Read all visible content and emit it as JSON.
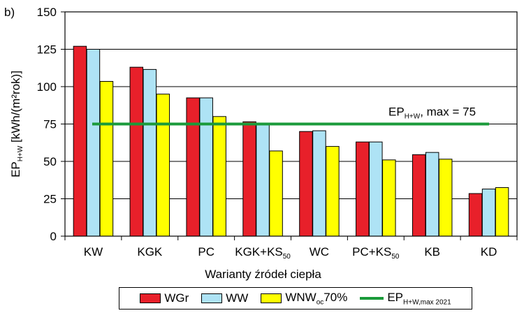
{
  "panel_label": "b)",
  "colors": {
    "WGr": "#e8202a",
    "WW": "#aee3f5",
    "WNW": "#ffff00",
    "reference": "#1a9a3a"
  },
  "reference_label": {
    "main": "EP",
    "sub": "H+W",
    "rest": ", max = 75"
  },
  "legend": {
    "wgr": "WGr",
    "ww": "WW",
    "wnw_main": "WNW",
    "wnw_sub": "oc",
    "wnw_rest": "70%",
    "ep_main": "EP",
    "ep_sub": "H+W,max 2021"
  },
  "chart_data": {
    "type": "bar",
    "xlabel": "Warianty źródeł ciepła",
    "ylabel": {
      "main": "EP",
      "sub": "H+W",
      "rest": " [kWh/(m²rok)]"
    },
    "ylim": [
      0,
      150
    ],
    "yticks": [
      0,
      25,
      50,
      75,
      100,
      125,
      150
    ],
    "grid": true,
    "legend_position": "bottom",
    "categories": [
      {
        "main": "KW",
        "sub": ""
      },
      {
        "main": "KGK",
        "sub": ""
      },
      {
        "main": "PC",
        "sub": ""
      },
      {
        "main": "KGK+KS",
        "sub": "50"
      },
      {
        "main": "WC",
        "sub": ""
      },
      {
        "main": "PC+KS",
        "sub": "50"
      },
      {
        "main": "KB",
        "sub": ""
      },
      {
        "main": "KD",
        "sub": ""
      }
    ],
    "series": [
      {
        "name": "WGr",
        "values": [
          127,
          113,
          92.5,
          76.5,
          70,
          63,
          54.5,
          28.5
        ]
      },
      {
        "name": "WW",
        "values": [
          125,
          111.5,
          92.5,
          75.5,
          70.5,
          63,
          56,
          31.5
        ]
      },
      {
        "name": "WNW",
        "values": [
          103.5,
          95,
          80,
          57,
          60,
          51,
          51.5,
          32.5
        ]
      }
    ],
    "reference_line": {
      "value": 75
    }
  }
}
